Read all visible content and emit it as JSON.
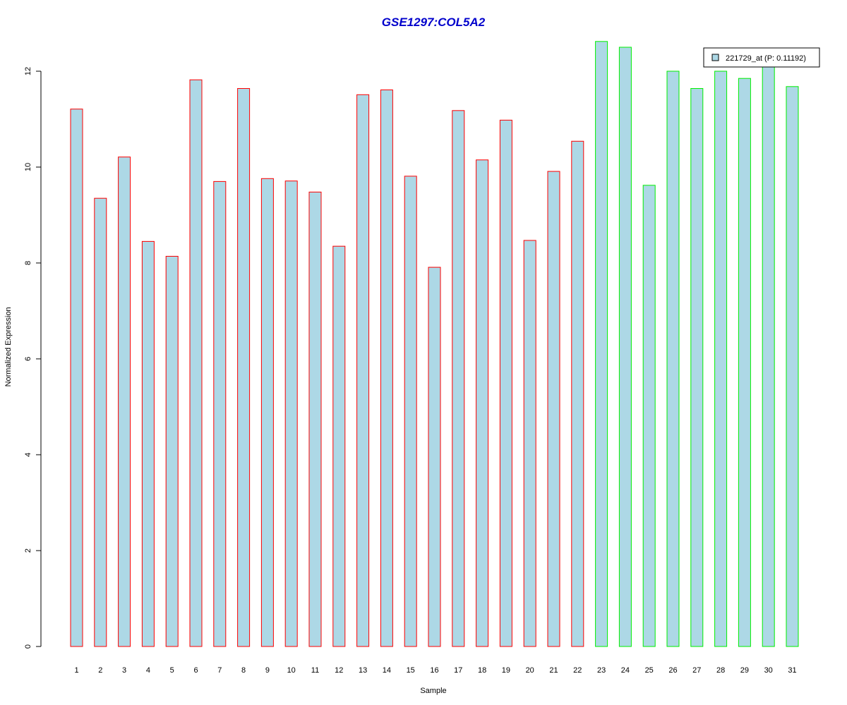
{
  "chart_data": {
    "type": "bar",
    "title": "GSE1297:COL5A2",
    "xlabel": "Sample",
    "ylabel": "Normalized Expression",
    "ylim": [
      0,
      12.6
    ],
    "yticks": [
      0,
      2,
      4,
      6,
      8,
      10,
      12
    ],
    "grid": false,
    "legend_position": "top-right",
    "categories": [
      "1",
      "2",
      "3",
      "4",
      "5",
      "6",
      "7",
      "8",
      "9",
      "10",
      "11",
      "12",
      "13",
      "14",
      "15",
      "16",
      "17",
      "18",
      "19",
      "20",
      "21",
      "22",
      "23",
      "24",
      "25",
      "26",
      "27",
      "28",
      "29",
      "30",
      "31"
    ],
    "series": [
      {
        "name": "221729_at (P: 0.11192)",
        "values": [
          11.21,
          9.35,
          10.21,
          8.45,
          8.14,
          11.82,
          9.7,
          11.64,
          9.76,
          9.71,
          9.48,
          8.35,
          11.51,
          11.61,
          9.81,
          7.91,
          11.18,
          10.15,
          10.98,
          8.47,
          9.91,
          10.54,
          12.62,
          12.5,
          9.62,
          12.0,
          11.64,
          12.0,
          11.85,
          12.1,
          11.68
        ]
      }
    ],
    "groups": [
      "red",
      "red",
      "red",
      "red",
      "red",
      "red",
      "red",
      "red",
      "red",
      "red",
      "red",
      "red",
      "red",
      "red",
      "red",
      "red",
      "red",
      "red",
      "red",
      "red",
      "red",
      "red",
      "green",
      "green",
      "green",
      "green",
      "green",
      "green",
      "green",
      "green",
      "green"
    ]
  },
  "colors": {
    "title": "#0000cc",
    "bar_fill": "#add8e6",
    "group_red": "#ff0000",
    "group_green": "#00ee00",
    "axis": "#000000"
  }
}
